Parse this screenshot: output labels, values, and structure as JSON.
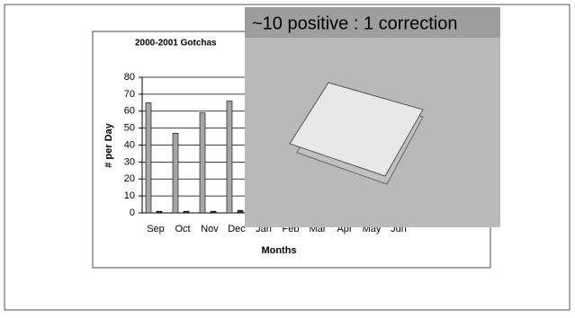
{
  "chart_data": {
    "type": "bar",
    "title": "2000-2001 Gotchas",
    "overlay_caption": "~10 positive : 1 correction",
    "xlabel": "Months",
    "ylabel": "# per Day",
    "categories": [
      "Sep",
      "Oct",
      "Nov",
      "Dec",
      "Jan",
      "Feb",
      "Mar",
      "Apr",
      "May",
      "Jun"
    ],
    "series": [
      {
        "color": "#a6a6a6",
        "values": [
          65,
          47,
          59,
          66,
          null,
          null,
          null,
          null,
          null,
          null
        ]
      },
      {
        "color": "#333333",
        "values": [
          1,
          1,
          1,
          1.5,
          null,
          null,
          null,
          null,
          null,
          null
        ]
      }
    ],
    "ylim": [
      0,
      80
    ],
    "yticks": [
      0,
      10,
      20,
      30,
      40,
      50,
      60,
      70,
      80
    ],
    "grid": true
  }
}
